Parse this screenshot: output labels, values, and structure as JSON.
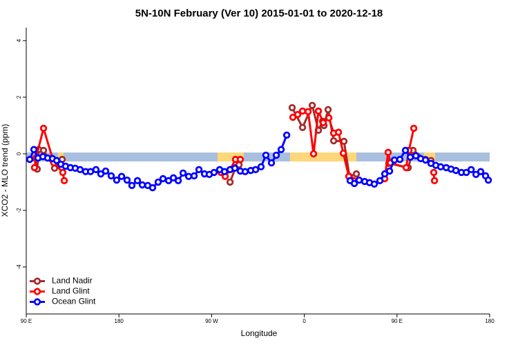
{
  "chart_data": {
    "type": "line",
    "title": "5N-10N February (Ver 10)   2015-01-01 to 2020-12-18",
    "x_label": "Longitude",
    "y_label": "XCO2 - MLO trend (ppm)",
    "xlim": [
      90,
      540
    ],
    "ylim": [
      -5.66,
      4.46
    ],
    "xticks": [
      {
        "value": 90,
        "label": "90 E"
      },
      180,
      {
        "value": 270,
        "label": "90 W"
      },
      {
        "value": 360,
        "label": "0"
      },
      {
        "value": 450,
        "label": "90 E"
      },
      {
        "value": 540,
        "label": "180"
      }
    ],
    "yticks": [
      -4,
      -2,
      0,
      2,
      4
    ],
    "legend": "bottom-left",
    "series": [
      {
        "name": "Land Nadir",
        "color": "#a52a2a",
        "x": [
          99.4,
          100.7,
          102.1,
          106.8,
          117.5,
          124.9,
          null,
          287.9,
          293.2,
          296.6,
          null,
          348.2,
          358.3,
          367.7,
          373.7,
          377.7,
          379.1,
          383.1,
          388.5,
          398.5,
          403.9,
          410.6,
          null,
          442.1,
          460.9,
          465.6,
          477.7,
          483.0
        ],
        "values": [
          -0.17,
          -0.54,
          0.15,
          0.12,
          -0.51,
          -0.2,
          null,
          -1.0,
          -0.49,
          -0.39,
          null,
          1.63,
          0.93,
          1.71,
          0.83,
          1.15,
          1.0,
          1.56,
          0.46,
          0.44,
          -0.8,
          -0.71,
          null,
          -0.34,
          -0.49,
          0.12,
          -0.2,
          -0.24
        ]
      },
      {
        "name": "Land Glint",
        "color": "#ff0000",
        "x": [
          98.0,
          99.4,
          106.8,
          116.8,
          125.5,
          126.9,
          null,
          279.1,
          283.2,
          287.9,
          293.2,
          297.9,
          null,
          348.9,
          353.6,
          358.3,
          363.7,
          369.0,
          373.7,
          378.4,
          383.8,
          388.5,
          393.2,
          397.9,
          403.2,
          407.9,
          null,
          438.1,
          441.4,
          443.5,
          458.9,
          461.6,
          466.3,
          null,
          485.7,
          486.4
        ],
        "values": [
          -0.49,
          -0.15,
          0.9,
          -0.32,
          -0.66,
          -0.95,
          null,
          -0.66,
          -0.8,
          -0.56,
          -0.2,
          -0.2,
          null,
          1.29,
          1.39,
          1.51,
          1.49,
          0.0,
          1.51,
          1.1,
          1.27,
          0.73,
          0.76,
          0.02,
          -0.8,
          -0.95,
          null,
          -0.88,
          0.05,
          -0.32,
          -0.49,
          0.12,
          0.9,
          null,
          -0.66,
          -0.95
        ]
      },
      {
        "name": "Ocean Glint",
        "color": "#0000ff",
        "x": [
          93.4,
          97.4,
          101.4,
          106.1,
          110.8,
          115.5,
          119.5,
          123.5,
          128.2,
          132.9,
          137.6,
          142.3,
          147.7,
          152.4,
          157.7,
          162.4,
          167.1,
          172.5,
          177.8,
          182.6,
          187.9,
          192.6,
          198.0,
          202.7,
          208.0,
          212.7,
          218.1,
          222.8,
          228.2,
          232.9,
          237.6,
          242.3,
          247.7,
          253.0,
          257.7,
          263.1,
          267.7,
          272.4,
          277.8,
          282.5,
          287.9,
          292.6,
          297.9,
          302.6,
          308.0,
          312.7,
          318.0,
          322.7,
          328.1,
          332.8,
          337.5,
          342.9,
          null,
          404.5,
          408.6,
          413.3,
          418.6,
          423.3,
          428.0,
          433.4,
          438.1,
          442.8,
          447.5,
          452.8,
          458.2,
          462.9,
          468.3,
          473.0,
          477.7,
          483.0,
          487.7,
          492.4,
          497.8,
          502.5,
          507.2,
          512.6,
          517.3,
          522.0,
          526.7,
          531.3,
          536.0,
          538.7
        ],
        "values": [
          -0.2,
          0.15,
          -0.15,
          -0.1,
          -0.15,
          -0.17,
          -0.24,
          -0.37,
          -0.44,
          -0.49,
          -0.51,
          -0.56,
          -0.63,
          -0.63,
          -0.56,
          -0.71,
          -0.61,
          -0.78,
          -0.93,
          -0.8,
          -0.93,
          -1.12,
          -0.95,
          -1.1,
          -1.12,
          -1.2,
          -1.0,
          -0.88,
          -0.95,
          -0.85,
          -0.95,
          -0.68,
          -0.8,
          -0.78,
          -0.56,
          -0.71,
          -0.73,
          -0.66,
          -0.56,
          -0.63,
          -0.56,
          -0.51,
          -0.61,
          -0.63,
          -0.59,
          -0.56,
          -0.46,
          -0.05,
          -0.32,
          -0.05,
          0.15,
          0.66,
          null,
          -0.95,
          -1.05,
          -0.93,
          -0.98,
          -1.02,
          -1.07,
          -0.95,
          -0.71,
          -0.61,
          -0.22,
          -0.2,
          0.12,
          -0.12,
          -0.07,
          -0.17,
          -0.22,
          -0.34,
          -0.41,
          -0.46,
          -0.49,
          -0.54,
          -0.59,
          -0.66,
          -0.66,
          -0.56,
          -0.73,
          -0.63,
          -0.78,
          -0.93
        ]
      }
    ]
  }
}
